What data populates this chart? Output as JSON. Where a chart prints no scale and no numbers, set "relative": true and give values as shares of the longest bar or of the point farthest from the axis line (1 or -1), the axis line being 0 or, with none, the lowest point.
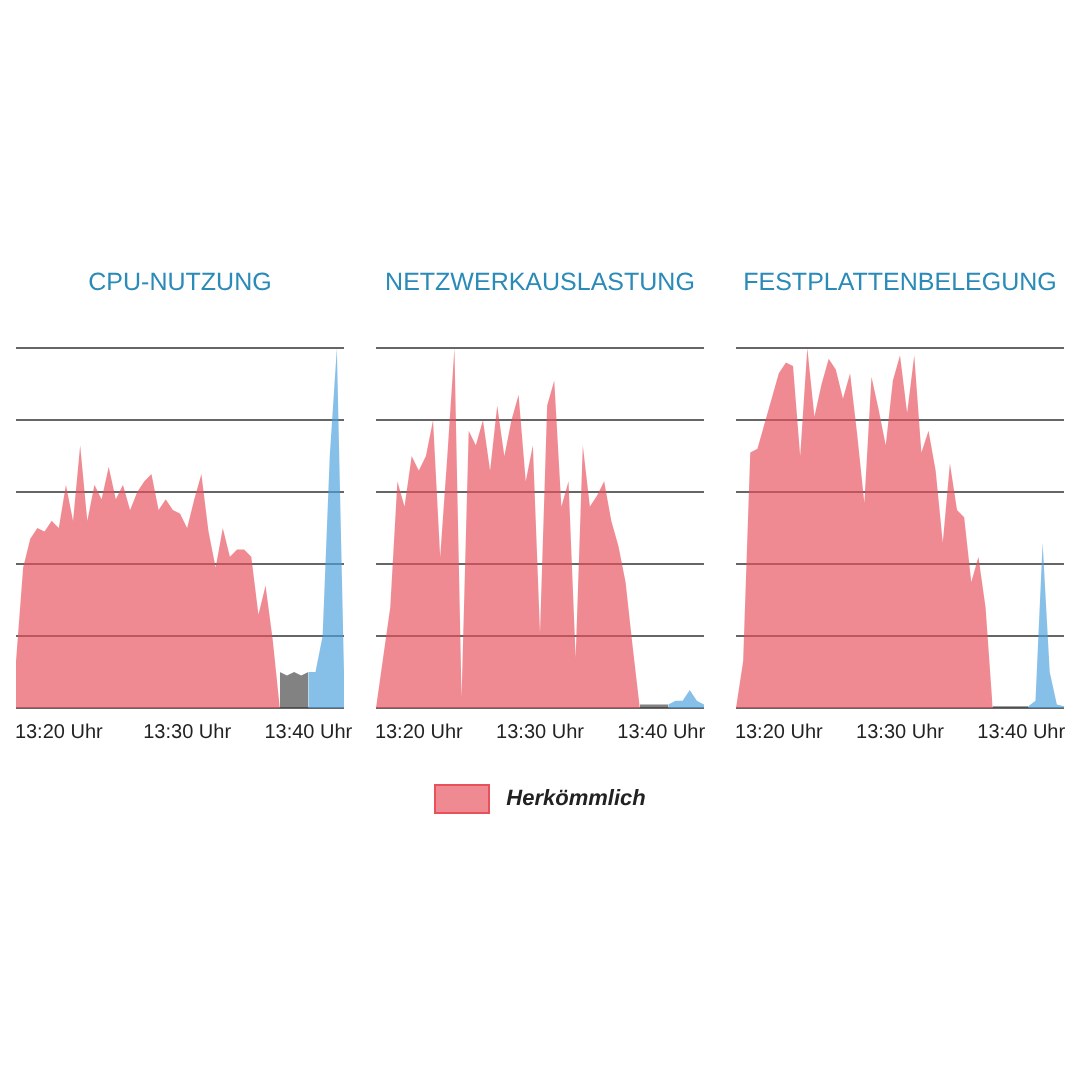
{
  "chart_data": [
    {
      "type": "area",
      "title": "CPU-NUTZUNG",
      "relative": true,
      "grid": "y",
      "tick_labels": "x",
      "categories": [
        null,
        null,
        null,
        null,
        null,
        null,
        "13:20 Uhr",
        null,
        null,
        null,
        null,
        null,
        null,
        null,
        null,
        null,
        null,
        null,
        null,
        null,
        null,
        null,
        null,
        null,
        "13:30 Uhr",
        null,
        null,
        null,
        null,
        null,
        null,
        null,
        null,
        null,
        null,
        null,
        null,
        null,
        null,
        null,
        null,
        "13:40 Uhr",
        null,
        null,
        null,
        null,
        null
      ],
      "series": [
        {
          "color": "#e8505b",
          "values": [
            0.13,
            0.39,
            0.47,
            0.5,
            0.49,
            0.52,
            0.5,
            0.62,
            0.52,
            0.73,
            0.52,
            0.62,
            0.58,
            0.67,
            0.58,
            0.62,
            0.55,
            0.6,
            0.63,
            0.65,
            0.55,
            0.58,
            0.55,
            0.54,
            0.5,
            0.58,
            0.65,
            0.49,
            0.39,
            0.5,
            0.42,
            0.44,
            0.44,
            0.42,
            0.26,
            0.34,
            0.19,
            0,
            null,
            null,
            null,
            null,
            null,
            null,
            null,
            null,
            null
          ]
        },
        {
          "color": "#444444",
          "values": [
            null,
            null,
            null,
            null,
            null,
            null,
            null,
            null,
            null,
            null,
            null,
            null,
            null,
            null,
            null,
            null,
            null,
            null,
            null,
            null,
            null,
            null,
            null,
            null,
            null,
            null,
            null,
            null,
            null,
            null,
            null,
            null,
            null,
            null,
            null,
            null,
            null,
            0.1,
            0.09,
            0.1,
            0.09,
            0.1,
            null,
            null,
            null,
            null,
            null
          ]
        },
        {
          "color": "#4a9fdc",
          "values": [
            null,
            null,
            null,
            null,
            null,
            null,
            null,
            null,
            null,
            null,
            null,
            null,
            null,
            null,
            null,
            null,
            null,
            null,
            null,
            null,
            null,
            null,
            null,
            null,
            null,
            null,
            null,
            null,
            null,
            null,
            null,
            null,
            null,
            null,
            null,
            null,
            null,
            null,
            null,
            null,
            null,
            0.1,
            0.1,
            0.2,
            0.7,
            1,
            0.1
          ]
        }
      ]
    },
    {
      "type": "area",
      "title": "NETZWERKAUSLASTUNG",
      "relative": true,
      "grid": "y",
      "tick_labels": "x",
      "legend": "bottom",
      "categories": [
        null,
        null,
        null,
        null,
        null,
        null,
        "13:20 Uhr",
        null,
        null,
        null,
        null,
        null,
        null,
        null,
        null,
        null,
        null,
        null,
        null,
        null,
        null,
        null,
        null,
        "13:30 Uhr",
        null,
        null,
        null,
        null,
        null,
        null,
        null,
        null,
        null,
        null,
        null,
        null,
        null,
        null,
        null,
        null,
        "13:40 Uhr",
        null,
        null,
        null,
        null,
        null,
        null
      ],
      "series": [
        {
          "name": "Herkömmlich",
          "color": "#e8505b",
          "values": [
            0,
            0.14,
            0.28,
            0.63,
            0.56,
            0.7,
            0.66,
            0.7,
            0.8,
            0.42,
            0.7,
            1,
            0.03,
            0.77,
            0.73,
            0.8,
            0.66,
            0.84,
            0.7,
            0.8,
            0.87,
            0.63,
            0.73,
            0.21,
            0.84,
            0.91,
            0.56,
            0.63,
            0.14,
            0.73,
            0.56,
            0.59,
            0.63,
            0.52,
            0.45,
            0.35,
            0.17,
            0,
            null,
            null,
            null,
            null,
            null,
            null,
            null,
            null,
            null
          ]
        },
        {
          "color": "#444444",
          "values": [
            null,
            null,
            null,
            null,
            null,
            null,
            null,
            null,
            null,
            null,
            null,
            null,
            null,
            null,
            null,
            null,
            null,
            null,
            null,
            null,
            null,
            null,
            null,
            null,
            null,
            null,
            null,
            null,
            null,
            null,
            null,
            null,
            null,
            null,
            null,
            null,
            null,
            0.01,
            0.01,
            0.01,
            0.01,
            0.01,
            null,
            null,
            null,
            null,
            null
          ]
        },
        {
          "color": "#4a9fdc",
          "values": [
            null,
            null,
            null,
            null,
            null,
            null,
            null,
            null,
            null,
            null,
            null,
            null,
            null,
            null,
            null,
            null,
            null,
            null,
            null,
            null,
            null,
            null,
            null,
            null,
            null,
            null,
            null,
            null,
            null,
            null,
            null,
            null,
            null,
            null,
            null,
            null,
            null,
            null,
            null,
            null,
            null,
            0.01,
            0.02,
            0.02,
            0.05,
            0.02,
            0.01
          ]
        }
      ]
    },
    {
      "type": "area",
      "title": "FESTPLATTENBELEGUNG",
      "relative": true,
      "grid": "y",
      "tick_labels": "x",
      "categories": [
        null,
        null,
        null,
        null,
        null,
        null,
        "13:20 Uhr",
        null,
        null,
        null,
        null,
        null,
        null,
        null,
        null,
        null,
        null,
        null,
        null,
        null,
        null,
        null,
        null,
        "13:30 Uhr",
        null,
        null,
        null,
        null,
        null,
        null,
        null,
        null,
        null,
        null,
        null,
        null,
        null,
        null,
        null,
        null,
        "13:40 Uhr",
        null,
        null,
        null,
        null,
        null,
        null
      ],
      "series": [
        {
          "color": "#e8505b",
          "values": [
            0,
            0.13,
            0.71,
            0.72,
            0.79,
            0.86,
            0.93,
            0.96,
            0.95,
            0.7,
            1,
            0.81,
            0.9,
            0.97,
            0.94,
            0.86,
            0.93,
            0.76,
            0.57,
            0.92,
            0.83,
            0.73,
            0.91,
            0.98,
            0.82,
            0.98,
            0.71,
            0.77,
            0.66,
            0.46,
            0.68,
            0.55,
            0.53,
            0.35,
            0.42,
            0.28,
            0,
            null,
            null,
            null,
            null,
            null,
            null,
            null,
            null,
            null,
            null
          ]
        },
        {
          "color": "#444444",
          "values": [
            null,
            null,
            null,
            null,
            null,
            null,
            null,
            null,
            null,
            null,
            null,
            null,
            null,
            null,
            null,
            null,
            null,
            null,
            null,
            null,
            null,
            null,
            null,
            null,
            null,
            null,
            null,
            null,
            null,
            null,
            null,
            null,
            null,
            null,
            null,
            null,
            0.005,
            0.005,
            0.005,
            0.005,
            0.005,
            0.005,
            null,
            null,
            null,
            null,
            null
          ]
        },
        {
          "color": "#4a9fdc",
          "values": [
            null,
            null,
            null,
            null,
            null,
            null,
            null,
            null,
            null,
            null,
            null,
            null,
            null,
            null,
            null,
            null,
            null,
            null,
            null,
            null,
            null,
            null,
            null,
            null,
            null,
            null,
            null,
            null,
            null,
            null,
            null,
            null,
            null,
            null,
            null,
            null,
            null,
            null,
            null,
            null,
            null,
            0.005,
            0.02,
            0.46,
            0.1,
            0.01,
            0.005
          ]
        }
      ]
    }
  ]
}
